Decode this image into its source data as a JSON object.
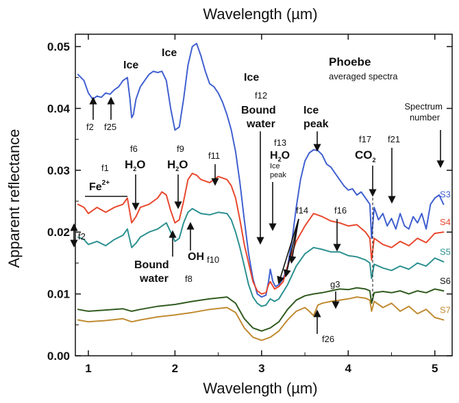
{
  "chart_data": {
    "type": "line",
    "title": "Phoebe",
    "subtitle": "averaged spectra",
    "xlabel_top": "Wavelength (µm)",
    "xlabel": "Wavelength (µm)",
    "ylabel": "Apparent reflectance",
    "xlim": [
      0.85,
      5.2
    ],
    "ylim": [
      0.0,
      0.052
    ],
    "x_ticks": [
      1,
      2,
      3,
      4,
      5
    ],
    "x_tick_labels": [
      "1",
      "2",
      "3",
      "4",
      "5"
    ],
    "y_ticks": [
      0.0,
      0.01,
      0.02,
      0.03,
      0.04,
      0.05
    ],
    "y_tick_labels": [
      "0.00",
      "0.01",
      "0.02",
      "0.03",
      "0.04",
      "0.05"
    ],
    "grid": false,
    "legend": "none",
    "spectrum_number_label": "Spectrum number",
    "series": [
      {
        "name": "S3",
        "color": "#3f5fcf",
        "x": [
          0.88,
          0.95,
          1.0,
          1.05,
          1.1,
          1.15,
          1.2,
          1.25,
          1.3,
          1.35,
          1.4,
          1.45,
          1.48,
          1.5,
          1.52,
          1.55,
          1.6,
          1.65,
          1.7,
          1.75,
          1.8,
          1.85,
          1.9,
          1.95,
          2.0,
          2.05,
          2.1,
          2.15,
          2.2,
          2.25,
          2.3,
          2.35,
          2.4,
          2.45,
          2.5,
          2.55,
          2.6,
          2.65,
          2.7,
          2.75,
          2.8,
          2.85,
          2.9,
          2.95,
          3.0,
          3.05,
          3.08,
          3.1,
          3.13,
          3.16,
          3.2,
          3.25,
          3.3,
          3.35,
          3.4,
          3.45,
          3.5,
          3.55,
          3.6,
          3.65,
          3.7,
          3.75,
          3.8,
          3.85,
          3.9,
          3.95,
          4.0,
          4.05,
          4.1,
          4.15,
          4.2,
          4.25,
          4.27,
          4.3,
          4.35,
          4.4,
          4.45,
          4.5,
          4.55,
          4.6,
          4.65,
          4.7,
          4.75,
          4.8,
          4.85,
          4.9,
          4.95,
          5.0,
          5.05,
          5.1
        ],
        "y": [
          0.0455,
          0.0445,
          0.0425,
          0.0415,
          0.042,
          0.0418,
          0.0425,
          0.0423,
          0.043,
          0.0435,
          0.0445,
          0.045,
          0.0415,
          0.0385,
          0.039,
          0.0415,
          0.0435,
          0.0445,
          0.0455,
          0.046,
          0.0458,
          0.046,
          0.0445,
          0.04,
          0.0365,
          0.037,
          0.0415,
          0.047,
          0.05,
          0.0505,
          0.0485,
          0.046,
          0.044,
          0.0435,
          0.0425,
          0.041,
          0.039,
          0.0365,
          0.033,
          0.028,
          0.022,
          0.0165,
          0.0125,
          0.01,
          0.0095,
          0.0098,
          0.012,
          0.014,
          0.012,
          0.0112,
          0.0115,
          0.0125,
          0.0145,
          0.0185,
          0.024,
          0.0285,
          0.0315,
          0.0328,
          0.0333,
          0.0332,
          0.0325,
          0.031,
          0.0305,
          0.0295,
          0.0285,
          0.0275,
          0.0268,
          0.027,
          0.026,
          0.0265,
          0.0255,
          0.0245,
          0.019,
          0.024,
          0.022,
          0.023,
          0.021,
          0.0222,
          0.0205,
          0.023,
          0.021,
          0.0205,
          0.0225,
          0.0215,
          0.023,
          0.0205,
          0.0245,
          0.0255,
          0.026,
          0.0245
        ]
      },
      {
        "name": "S4",
        "color": "#e8472d",
        "x": [
          0.88,
          0.95,
          1.0,
          1.1,
          1.2,
          1.3,
          1.4,
          1.45,
          1.5,
          1.55,
          1.6,
          1.7,
          1.8,
          1.85,
          1.9,
          1.95,
          2.0,
          2.05,
          2.1,
          2.15,
          2.2,
          2.25,
          2.3,
          2.4,
          2.5,
          2.6,
          2.65,
          2.7,
          2.75,
          2.8,
          2.85,
          2.9,
          2.95,
          3.0,
          3.05,
          3.08,
          3.1,
          3.15,
          3.2,
          3.25,
          3.3,
          3.4,
          3.5,
          3.6,
          3.7,
          3.8,
          3.9,
          4.0,
          4.1,
          4.2,
          4.25,
          4.27,
          4.3,
          4.4,
          4.5,
          4.6,
          4.7,
          4.8,
          4.9,
          5.0,
          5.1
        ],
        "y": [
          0.0245,
          0.024,
          0.023,
          0.024,
          0.0232,
          0.024,
          0.0245,
          0.0255,
          0.0215,
          0.0225,
          0.024,
          0.0245,
          0.0255,
          0.0265,
          0.026,
          0.0235,
          0.0215,
          0.022,
          0.025,
          0.0285,
          0.0295,
          0.0292,
          0.0285,
          0.028,
          0.029,
          0.0285,
          0.0275,
          0.0255,
          0.022,
          0.018,
          0.015,
          0.012,
          0.0105,
          0.01,
          0.0102,
          0.0115,
          0.012,
          0.0108,
          0.0112,
          0.012,
          0.0145,
          0.0185,
          0.021,
          0.023,
          0.0225,
          0.0218,
          0.0215,
          0.021,
          0.0212,
          0.02,
          0.019,
          0.0155,
          0.019,
          0.018,
          0.0175,
          0.0185,
          0.0178,
          0.019,
          0.0183,
          0.0198,
          0.02
        ]
      },
      {
        "name": "S5",
        "color": "#2c9090",
        "x": [
          0.88,
          0.95,
          1.0,
          1.1,
          1.2,
          1.3,
          1.4,
          1.45,
          1.5,
          1.55,
          1.6,
          1.7,
          1.8,
          1.9,
          1.95,
          2.0,
          2.05,
          2.1,
          2.15,
          2.2,
          2.3,
          2.4,
          2.5,
          2.6,
          2.65,
          2.7,
          2.75,
          2.8,
          2.85,
          2.9,
          2.95,
          3.0,
          3.05,
          3.1,
          3.15,
          3.2,
          3.3,
          3.4,
          3.5,
          3.6,
          3.7,
          3.8,
          3.9,
          4.0,
          4.1,
          4.2,
          4.25,
          4.27,
          4.3,
          4.4,
          4.5,
          4.6,
          4.7,
          4.8,
          4.9,
          5.0,
          5.1
        ],
        "y": [
          0.0192,
          0.0188,
          0.018,
          0.0185,
          0.0178,
          0.0188,
          0.0195,
          0.0205,
          0.0175,
          0.0182,
          0.0192,
          0.02,
          0.0205,
          0.0215,
          0.02,
          0.0185,
          0.019,
          0.0215,
          0.0232,
          0.0238,
          0.023,
          0.0228,
          0.0232,
          0.023,
          0.022,
          0.02,
          0.0175,
          0.0145,
          0.0115,
          0.0095,
          0.0085,
          0.008,
          0.0082,
          0.0092,
          0.0088,
          0.0092,
          0.0115,
          0.0145,
          0.0165,
          0.0175,
          0.0172,
          0.0168,
          0.0168,
          0.0162,
          0.016,
          0.0155,
          0.015,
          0.0125,
          0.0148,
          0.0142,
          0.0138,
          0.0145,
          0.014,
          0.015,
          0.0145,
          0.0158,
          0.0152
        ]
      },
      {
        "name": "S6",
        "color": "#2f5a1e",
        "x": [
          0.88,
          1.0,
          1.2,
          1.4,
          1.5,
          1.6,
          1.8,
          2.0,
          2.2,
          2.4,
          2.6,
          2.7,
          2.8,
          2.9,
          3.0,
          3.1,
          3.2,
          3.3,
          3.4,
          3.5,
          3.6,
          3.7,
          3.8,
          3.9,
          4.0,
          4.1,
          4.2,
          4.25,
          4.27,
          4.3,
          4.4,
          4.5,
          4.6,
          4.7,
          4.8,
          4.9,
          5.0,
          5.1
        ],
        "y": [
          0.0075,
          0.0072,
          0.0074,
          0.0076,
          0.0072,
          0.0075,
          0.008,
          0.0083,
          0.0088,
          0.0092,
          0.0095,
          0.0085,
          0.006,
          0.0045,
          0.004,
          0.0045,
          0.0055,
          0.0075,
          0.009,
          0.0097,
          0.01,
          0.0102,
          0.0105,
          0.0108,
          0.0107,
          0.011,
          0.0108,
          0.0105,
          0.0085,
          0.0102,
          0.0104,
          0.0102,
          0.0105,
          0.01,
          0.0105,
          0.0102,
          0.0108,
          0.0105
        ]
      },
      {
        "name": "S7",
        "color": "#c08a30",
        "x": [
          0.88,
          1.0,
          1.2,
          1.4,
          1.5,
          1.6,
          1.8,
          2.0,
          2.2,
          2.4,
          2.6,
          2.7,
          2.8,
          2.9,
          3.0,
          3.1,
          3.2,
          3.3,
          3.4,
          3.5,
          3.55,
          3.6,
          3.65,
          3.7,
          3.8,
          3.9,
          4.0,
          4.1,
          4.2,
          4.25,
          4.27,
          4.3,
          4.4,
          4.5,
          4.6,
          4.7,
          4.8,
          4.9,
          5.0,
          5.1
        ],
        "y": [
          0.0058,
          0.0055,
          0.0057,
          0.006,
          0.0055,
          0.0058,
          0.0063,
          0.0066,
          0.007,
          0.0075,
          0.0078,
          0.007,
          0.0045,
          0.003,
          0.0025,
          0.003,
          0.004,
          0.0058,
          0.0072,
          0.0078,
          0.0072,
          0.0065,
          0.0082,
          0.0085,
          0.0088,
          0.009,
          0.0092,
          0.0095,
          0.0093,
          0.009,
          0.0072,
          0.0088,
          0.0078,
          0.0085,
          0.0072,
          0.008,
          0.0068,
          0.0075,
          0.0062,
          0.0058
        ]
      }
    ],
    "annotations": {
      "ice_1": "Ice",
      "ice_2": "Ice",
      "ice_3": "Ice",
      "f12": "f12",
      "bound_water_1a": "Bound",
      "bound_water_1b": "water",
      "f13": "f13",
      "h2o_3": "H2O",
      "ice_peak_small_1": "Ice",
      "ice_peak_small_2": "peak",
      "ice_peak_1": "Ice",
      "ice_peak_2": "peak",
      "f17": "f17",
      "co2": "CO2",
      "f21": "f21",
      "f1": "f1",
      "fe2": "Fe2+",
      "f6": "f6",
      "h2o_1": "H2O",
      "f9": "f9",
      "h2o_2": "H2O",
      "f11": "f11",
      "f2_top": "f2",
      "f25": "f25",
      "f2_bottom": "f2",
      "f14": "f14",
      "f16": "f16",
      "bound_water_2a": "Bound",
      "bound_water_2b": "water",
      "f8": "f8",
      "oh": "OH",
      "f10": "f10",
      "g3": "g3",
      "f26": "f26"
    }
  }
}
